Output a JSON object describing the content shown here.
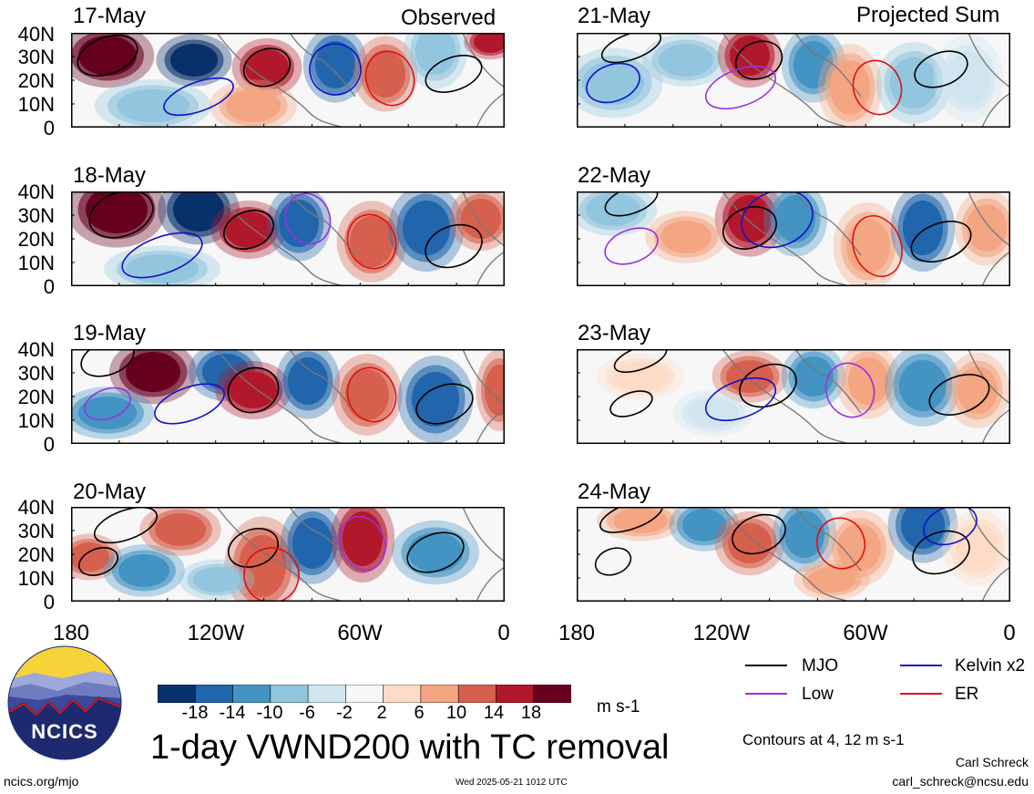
{
  "headers": {
    "observed": "Observed",
    "projected": "Projected Sum"
  },
  "panels": [
    {
      "date": "17-May",
      "column": "observed"
    },
    {
      "date": "18-May",
      "column": "observed"
    },
    {
      "date": "19-May",
      "column": "observed"
    },
    {
      "date": "20-May",
      "column": "observed"
    },
    {
      "date": "21-May",
      "column": "projected"
    },
    {
      "date": "22-May",
      "column": "projected"
    },
    {
      "date": "23-May",
      "column": "projected"
    },
    {
      "date": "24-May",
      "column": "projected"
    }
  ],
  "y_axis_labels": [
    "40N",
    "30N",
    "20N",
    "10N",
    "0"
  ],
  "x_axis_labels": [
    "180",
    "120W",
    "60W",
    "0"
  ],
  "colorbar": {
    "labels": [
      "-18",
      "-14",
      "-10",
      "-6",
      "-2",
      "2",
      "6",
      "10",
      "14",
      "18"
    ],
    "units": "m s-1",
    "colors": [
      "#08306b",
      "#2166ac",
      "#4393c3",
      "#92c5de",
      "#d1e5f0",
      "#f7f7f7",
      "#fddbc7",
      "#f4a582",
      "#d6604d",
      "#b2182b",
      "#67001f"
    ]
  },
  "legend": {
    "items": [
      {
        "label": "MJO",
        "color": "#000000"
      },
      {
        "label": "Kelvin x2",
        "color": "#1010c8"
      },
      {
        "label": "Low",
        "color": "#9b30e0"
      },
      {
        "label": "ER",
        "color": "#e01010"
      }
    ],
    "contours_note": "Contours at 4, 12 m s-1"
  },
  "title": "1-day VWND200 with TC removal",
  "logo_text": "NCICS",
  "footer": {
    "url": "ncics.org/mjo",
    "timestamp": "Wed 2025-05-21 1012 UTC",
    "author": "Carl Schreck",
    "email": "carl_schreck@ncsu.edu"
  }
}
